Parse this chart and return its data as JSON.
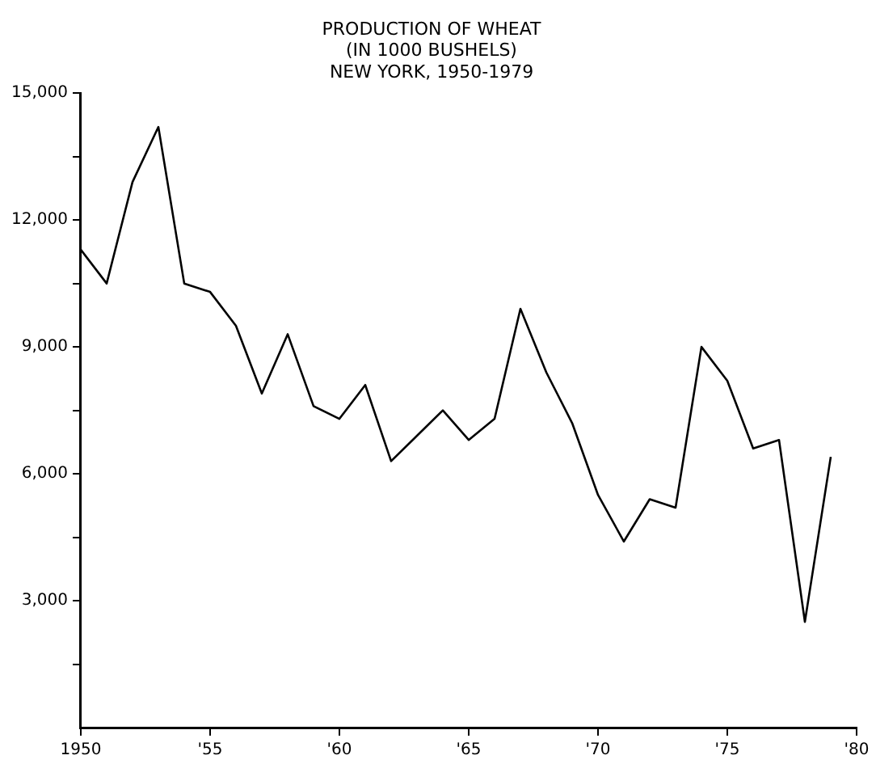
{
  "chart_data": {
    "type": "line",
    "title": "PRODUCTION OF WHEAT\n(IN 1000 BUSHELS)\nNEW YORK, 1950-1979",
    "x": [
      1950,
      1951,
      1952,
      1953,
      1954,
      1955,
      1956,
      1957,
      1958,
      1959,
      1960,
      1961,
      1962,
      1963,
      1964,
      1965,
      1966,
      1967,
      1968,
      1969,
      1970,
      1971,
      1972,
      1973,
      1974,
      1975,
      1976,
      1977,
      1978,
      1979
    ],
    "series": [
      {
        "color": "#000000",
        "values": [
          11300,
          10500,
          12900,
          14200,
          10500,
          10300,
          9500,
          7900,
          9300,
          7600,
          7300,
          8100,
          6300,
          6900,
          7500,
          6800,
          7300,
          9900,
          8400,
          7200,
          5500,
          4400,
          5400,
          5200,
          9000,
          8200,
          6600,
          6800,
          2500,
          6400
        ]
      }
    ],
    "xlim": [
      1950,
      1980
    ],
    "xticks": [
      1950,
      {
        "value": 1955,
        "label": "'55"
      },
      {
        "value": 1960,
        "label": "'60"
      },
      {
        "value": 1965,
        "label": "'65"
      },
      {
        "value": 1970,
        "label": "'70"
      },
      {
        "value": 1975,
        "label": "'75"
      },
      {
        "value": 1980,
        "label": "'80"
      }
    ],
    "ylim": [
      0,
      15000
    ],
    "yticks": [
      {
        "value": 1500,
        "label": null
      },
      {
        "value": 3000,
        "label": "3,000"
      },
      {
        "value": 4500,
        "label": null
      },
      {
        "value": 6000,
        "label": "6,000"
      },
      {
        "value": 7500,
        "label": null
      },
      {
        "value": 9000,
        "label": "9,000"
      },
      {
        "value": 10500,
        "label": null
      },
      {
        "value": 12000,
        "label": "12,000"
      },
      {
        "value": 13500,
        "label": null
      },
      {
        "value": 15000,
        "label": "15,000"
      }
    ],
    "grid": false,
    "legend": false,
    "marker": "none",
    "line_style": "solid"
  }
}
